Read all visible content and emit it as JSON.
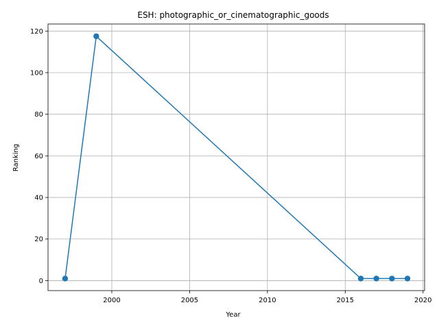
{
  "chart_data": {
    "type": "line",
    "title": "ESH: photographic_or_cinematographic_goods",
    "xlabel": "Year",
    "ylabel": "Ranking",
    "xlim": [
      1995.9,
      2020.1
    ],
    "ylim": [
      -4.8,
      123.4
    ],
    "xticks": [
      2000,
      2005,
      2010,
      2015,
      2020
    ],
    "yticks": [
      0,
      20,
      40,
      60,
      80,
      100,
      120
    ],
    "grid": true,
    "series": [
      {
        "color": "#1f77b4",
        "marker": "circle",
        "x": [
          1997,
          1999,
          2016,
          2017,
          2018,
          2019
        ],
        "y": [
          1,
          117.5,
          1,
          1,
          1,
          1
        ]
      }
    ]
  }
}
